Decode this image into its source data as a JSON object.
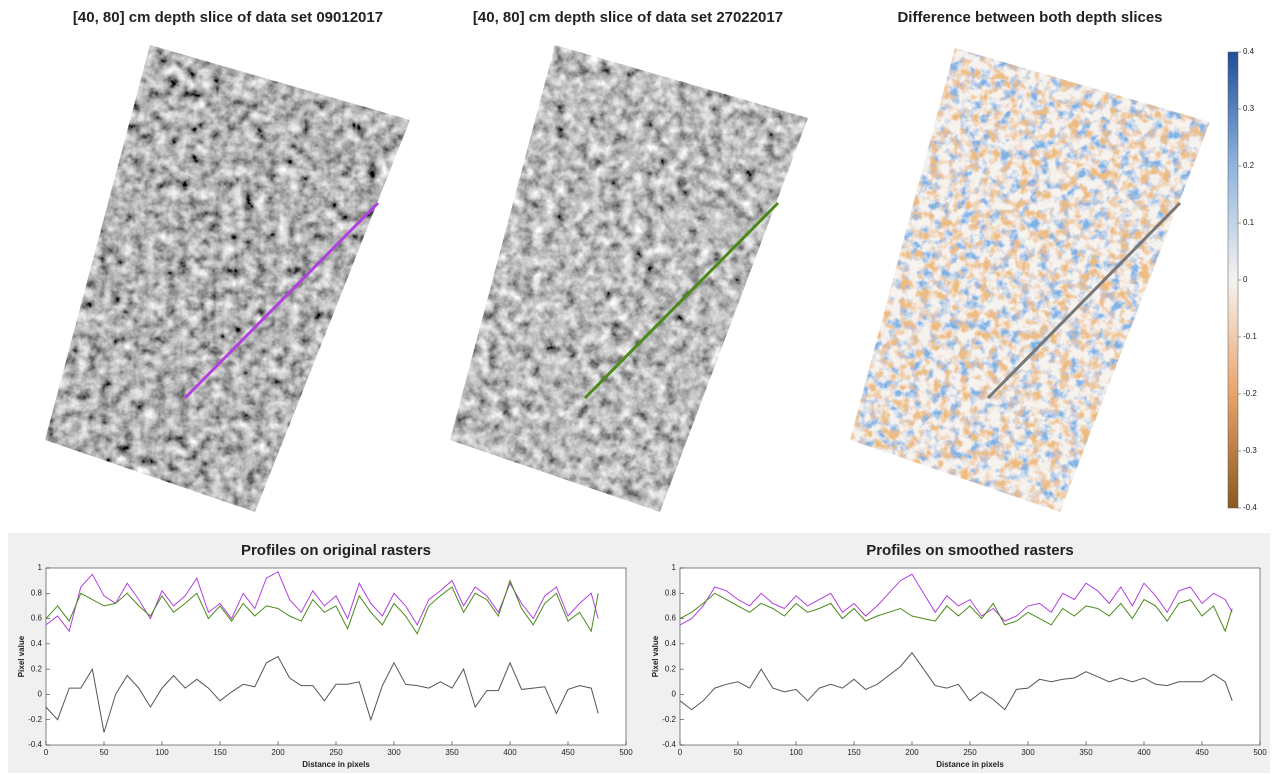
{
  "chart_data": [
    {
      "type": "image",
      "title": "[40, 80] cm depth slice of data set 09012017"
    },
    {
      "type": "image",
      "title": "[40, 80] cm depth slice of data set 27022017"
    },
    {
      "type": "image",
      "title": "Difference between both depth slices",
      "colorbar": {
        "clim": [
          -0.4,
          0.4
        ],
        "ticks": [
          0.4,
          0.3,
          0.2,
          0.1,
          0,
          -0.1,
          -0.2,
          -0.3,
          -0.4
        ]
      }
    },
    {
      "type": "line",
      "title": "Profiles on original rasters",
      "xlabel": "Distance in pixels",
      "ylabel": "Pixel value",
      "xlim": [
        0,
        500
      ],
      "xticks": [
        0,
        50,
        100,
        150,
        200,
        250,
        300,
        350,
        400,
        450,
        500
      ],
      "ylim": [
        -0.4,
        1
      ],
      "yticks": [
        -0.4,
        -0.2,
        0,
        0.2,
        0.4,
        0.6,
        0.8,
        1
      ],
      "x": [
        0,
        10,
        20,
        30,
        40,
        50,
        60,
        70,
        80,
        90,
        100,
        110,
        120,
        130,
        140,
        150,
        160,
        170,
        180,
        190,
        200,
        210,
        220,
        230,
        240,
        250,
        260,
        270,
        280,
        290,
        300,
        310,
        320,
        330,
        340,
        350,
        360,
        370,
        380,
        390,
        400,
        410,
        420,
        430,
        440,
        450,
        460,
        470,
        476
      ],
      "series": [
        {
          "color": "#b040e0",
          "values": [
            0.55,
            0.62,
            0.5,
            0.85,
            0.95,
            0.78,
            0.72,
            0.88,
            0.75,
            0.6,
            0.82,
            0.7,
            0.78,
            0.92,
            0.65,
            0.72,
            0.6,
            0.8,
            0.68,
            0.92,
            0.97,
            0.75,
            0.65,
            0.82,
            0.7,
            0.78,
            0.6,
            0.88,
            0.72,
            0.62,
            0.8,
            0.7,
            0.55,
            0.75,
            0.82,
            0.9,
            0.7,
            0.85,
            0.78,
            0.65,
            0.88,
            0.72,
            0.6,
            0.78,
            0.85,
            0.62,
            0.72,
            0.8,
            0.6
          ]
        },
        {
          "color": "#4a8a1a",
          "values": [
            0.6,
            0.7,
            0.58,
            0.8,
            0.75,
            0.7,
            0.72,
            0.8,
            0.7,
            0.62,
            0.78,
            0.65,
            0.72,
            0.8,
            0.6,
            0.7,
            0.58,
            0.72,
            0.62,
            0.7,
            0.68,
            0.62,
            0.58,
            0.75,
            0.65,
            0.7,
            0.52,
            0.78,
            0.65,
            0.55,
            0.72,
            0.62,
            0.48,
            0.7,
            0.78,
            0.85,
            0.65,
            0.8,
            0.75,
            0.62,
            0.9,
            0.68,
            0.55,
            0.72,
            0.8,
            0.58,
            0.65,
            0.5,
            0.8
          ]
        },
        {
          "color": "#555555",
          "values": [
            -0.1,
            -0.2,
            0.05,
            0.05,
            0.2,
            -0.3,
            0.0,
            0.15,
            0.05,
            -0.1,
            0.05,
            0.15,
            0.05,
            0.12,
            0.05,
            -0.05,
            0.02,
            0.08,
            0.06,
            0.25,
            0.3,
            0.13,
            0.07,
            0.07,
            -0.05,
            0.08,
            0.08,
            0.1,
            -0.2,
            0.07,
            0.25,
            0.08,
            0.07,
            0.05,
            0.1,
            0.05,
            0.2,
            -0.1,
            0.03,
            0.03,
            0.25,
            0.04,
            0.05,
            0.06,
            -0.15,
            0.04,
            0.07,
            0.05,
            -0.15
          ]
        }
      ]
    },
    {
      "type": "line",
      "title": "Profiles on smoothed rasters",
      "xlabel": "Distance in pixels",
      "ylabel": "Pixel value",
      "xlim": [
        0,
        500
      ],
      "xticks": [
        0,
        50,
        100,
        150,
        200,
        250,
        300,
        350,
        400,
        450,
        500
      ],
      "ylim": [
        -0.4,
        1
      ],
      "yticks": [
        -0.4,
        -0.2,
        0,
        0.2,
        0.4,
        0.6,
        0.8,
        1
      ],
      "x": [
        0,
        10,
        20,
        30,
        40,
        50,
        60,
        70,
        80,
        90,
        100,
        110,
        120,
        130,
        140,
        150,
        160,
        170,
        180,
        190,
        200,
        210,
        220,
        230,
        240,
        250,
        260,
        270,
        280,
        290,
        300,
        310,
        320,
        330,
        340,
        350,
        360,
        370,
        380,
        390,
        400,
        410,
        420,
        430,
        440,
        450,
        460,
        470,
        476
      ],
      "series": [
        {
          "color": "#b040e0",
          "values": [
            0.55,
            0.6,
            0.7,
            0.85,
            0.82,
            0.75,
            0.7,
            0.8,
            0.72,
            0.68,
            0.78,
            0.7,
            0.75,
            0.8,
            0.65,
            0.72,
            0.62,
            0.7,
            0.8,
            0.9,
            0.95,
            0.8,
            0.65,
            0.78,
            0.7,
            0.75,
            0.62,
            0.68,
            0.58,
            0.62,
            0.7,
            0.72,
            0.65,
            0.8,
            0.75,
            0.88,
            0.82,
            0.72,
            0.85,
            0.7,
            0.88,
            0.78,
            0.65,
            0.82,
            0.85,
            0.72,
            0.8,
            0.75,
            0.65
          ]
        },
        {
          "color": "#4a8a1a",
          "values": [
            0.6,
            0.65,
            0.72,
            0.8,
            0.75,
            0.7,
            0.65,
            0.72,
            0.68,
            0.62,
            0.72,
            0.65,
            0.68,
            0.72,
            0.6,
            0.68,
            0.58,
            0.62,
            0.65,
            0.68,
            0.62,
            0.6,
            0.58,
            0.7,
            0.62,
            0.7,
            0.6,
            0.72,
            0.55,
            0.58,
            0.65,
            0.6,
            0.55,
            0.68,
            0.62,
            0.7,
            0.68,
            0.62,
            0.72,
            0.6,
            0.75,
            0.7,
            0.58,
            0.72,
            0.75,
            0.62,
            0.7,
            0.5,
            0.68
          ]
        },
        {
          "color": "#555555",
          "values": [
            -0.05,
            -0.12,
            -0.05,
            0.05,
            0.08,
            0.1,
            0.05,
            0.2,
            0.05,
            0.02,
            0.04,
            -0.05,
            0.05,
            0.08,
            0.05,
            0.12,
            0.04,
            0.08,
            0.15,
            0.22,
            0.33,
            0.2,
            0.07,
            0.05,
            0.08,
            -0.05,
            0.02,
            -0.04,
            -0.12,
            0.04,
            0.05,
            0.12,
            0.1,
            0.12,
            0.13,
            0.18,
            0.14,
            0.1,
            0.13,
            0.1,
            0.13,
            0.08,
            0.07,
            0.1,
            0.1,
            0.1,
            0.16,
            0.1,
            -0.05
          ]
        }
      ]
    }
  ]
}
